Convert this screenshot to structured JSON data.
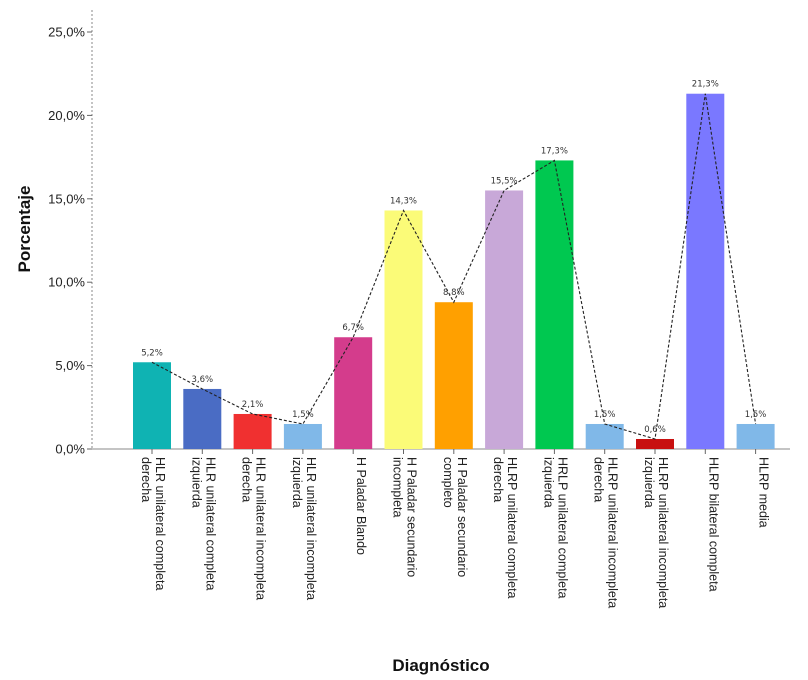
{
  "chart_data": {
    "type": "bar",
    "xlabel": "Diagnóstico",
    "ylabel": "Porcentaje",
    "ylim": [
      0,
      25
    ],
    "yticks": [
      0,
      5,
      10,
      15,
      20,
      25
    ],
    "ytick_labels": [
      "0,0%",
      "5,0%",
      "10,0%",
      "15,0%",
      "20,0%",
      "25,0%"
    ],
    "categories": [
      [
        "HLR unilateral completa",
        "derecha"
      ],
      [
        "HLR unilateral completa",
        "izquierda"
      ],
      [
        "HLR unilateral incompleta",
        "derecha"
      ],
      [
        "HLR unilateral incompleta",
        "izquierda"
      ],
      [
        "H Paladar Blando"
      ],
      [
        "H Paladar secundario",
        "incompleta"
      ],
      [
        "H Paladar secundario",
        "completo"
      ],
      [
        "HLRP unilateral completa",
        "derecha"
      ],
      [
        "HRLP unilateral completa",
        "izquierda"
      ],
      [
        "HLRP unilateral incompleta",
        "derecha"
      ],
      [
        "HLRP unilateral incompleta",
        "izquierda"
      ],
      [
        "HLRP bilateral completa"
      ],
      [
        "HLRP media"
      ]
    ],
    "values": [
      5.2,
      3.6,
      2.1,
      1.5,
      6.7,
      14.3,
      8.8,
      15.5,
      17.3,
      1.5,
      0.6,
      21.3,
      1.5
    ],
    "data_labels": [
      "5,2%",
      "3,6%",
      "2,1%",
      "1,5%",
      "6,7%",
      "14,3%",
      "8,8%",
      "15,5%",
      "17,3%",
      "1,5%",
      "0,6%",
      "21,3%",
      "1,5%"
    ],
    "colors": [
      "#0fb3b3",
      "#4a6cc4",
      "#f03030",
      "#80b8e8",
      "#d43c8c",
      "#fbfb78",
      "#ffa000",
      "#c8a8d8",
      "#00c850",
      "#80b8e8",
      "#c81010",
      "#7a78ff",
      "#80b8e8"
    ],
    "connector_line": "dashed",
    "grid": false
  }
}
